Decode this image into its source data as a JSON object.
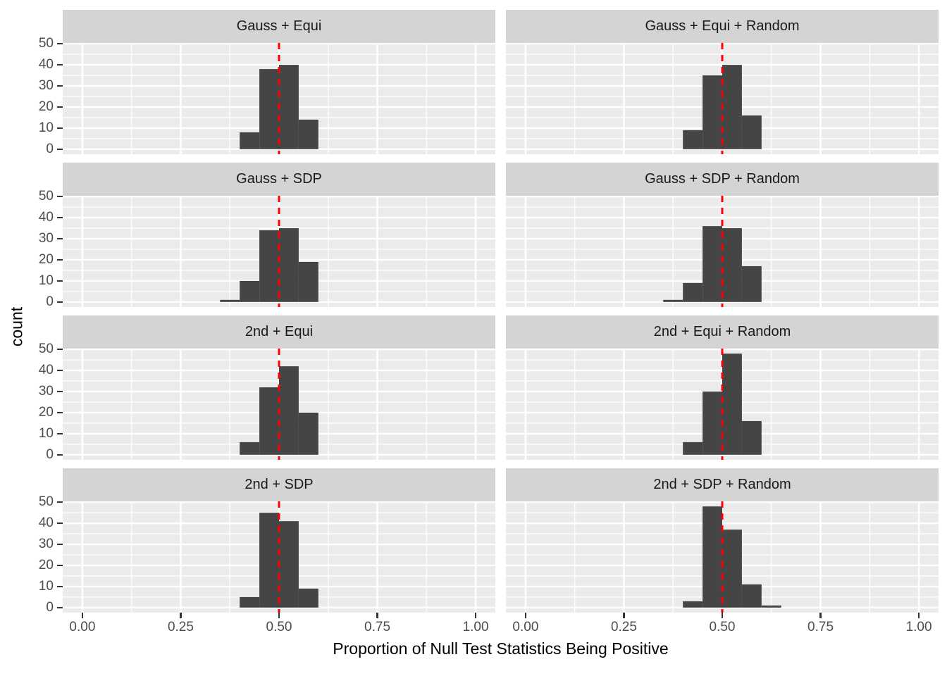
{
  "figure": {
    "background": "#FFFFFF",
    "panel_bg": "#EBEBEB",
    "strip_bg": "#D4D4D4",
    "grid_color": "#FFFFFF",
    "bar_color": "#454545",
    "axis_text_color": "#4D4D4D",
    "axis_title_color": "#000000",
    "tick_mark_color": "#333333"
  },
  "chart_data": {
    "type": "bar",
    "subtype": "faceted-histogram",
    "title": "",
    "xlabel": "Proportion of Null Test Statistics Being Positive",
    "ylabel": "count",
    "grid": {
      "nrow": 4,
      "ncol": 2,
      "legend": "none",
      "gridlines": "on"
    },
    "xlim": [
      -0.05,
      1.05
    ],
    "ylim": [
      -2.4,
      50.4
    ],
    "x_ticks": {
      "values": [
        0,
        0.25,
        0.5,
        0.75,
        1
      ],
      "labels": [
        "0.00",
        "0.25",
        "0.50",
        "0.75",
        "1.00"
      ]
    },
    "y_ticks": {
      "values": [
        0,
        10,
        20,
        30,
        40,
        50
      ],
      "labels": [
        "0",
        "10",
        "20",
        "30",
        "40",
        "50"
      ]
    },
    "x_minor": [
      0.125,
      0.375,
      0.625,
      0.875
    ],
    "y_minor": [
      5,
      15,
      25,
      35,
      45
    ],
    "bin_width": 0.05,
    "reference_line": {
      "x": 0.5,
      "color": "#FF0000",
      "linetype": "dashed"
    },
    "facets": [
      {
        "label": "Gauss + Equi",
        "bin_start": 0.4,
        "counts": [
          8,
          38,
          40,
          14
        ]
      },
      {
        "label": "Gauss + Equi + Random",
        "bin_start": 0.4,
        "counts": [
          9,
          35,
          40,
          16
        ]
      },
      {
        "label": "Gauss + SDP",
        "bin_start": 0.35,
        "counts": [
          1,
          10,
          34,
          35,
          19
        ]
      },
      {
        "label": "Gauss + SDP + Random",
        "bin_start": 0.35,
        "counts": [
          1,
          9,
          36,
          35,
          17
        ]
      },
      {
        "label": "2nd + Equi",
        "bin_start": 0.4,
        "counts": [
          6,
          32,
          42,
          20
        ]
      },
      {
        "label": "2nd + Equi + Random",
        "bin_start": 0.4,
        "counts": [
          6,
          30,
          48,
          16
        ]
      },
      {
        "label": "2nd + SDP",
        "bin_start": 0.4,
        "counts": [
          5,
          45,
          41,
          9
        ]
      },
      {
        "label": "2nd + SDP + Random",
        "bin_start": 0.4,
        "counts": [
          3,
          48,
          37,
          11,
          1
        ]
      }
    ]
  }
}
